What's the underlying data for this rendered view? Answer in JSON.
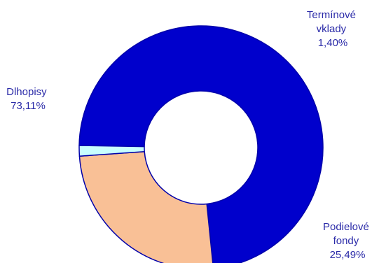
{
  "chart_data": {
    "type": "pie",
    "variant": "donut",
    "slices": [
      {
        "label_lines": [
          "Dlhopisy",
          "73,11%"
        ],
        "value": 73.11,
        "color": "#0000cc"
      },
      {
        "label_lines": [
          "Podielové",
          "fondy",
          "25,49%"
        ],
        "value": 25.49,
        "color": "#f9c096"
      },
      {
        "label_lines": [
          "Termínové",
          "vklady",
          "1,40%"
        ],
        "value": 1.4,
        "color": "#c8ffff"
      }
    ],
    "slice_border_color": "#0000aa",
    "legend": "none"
  }
}
